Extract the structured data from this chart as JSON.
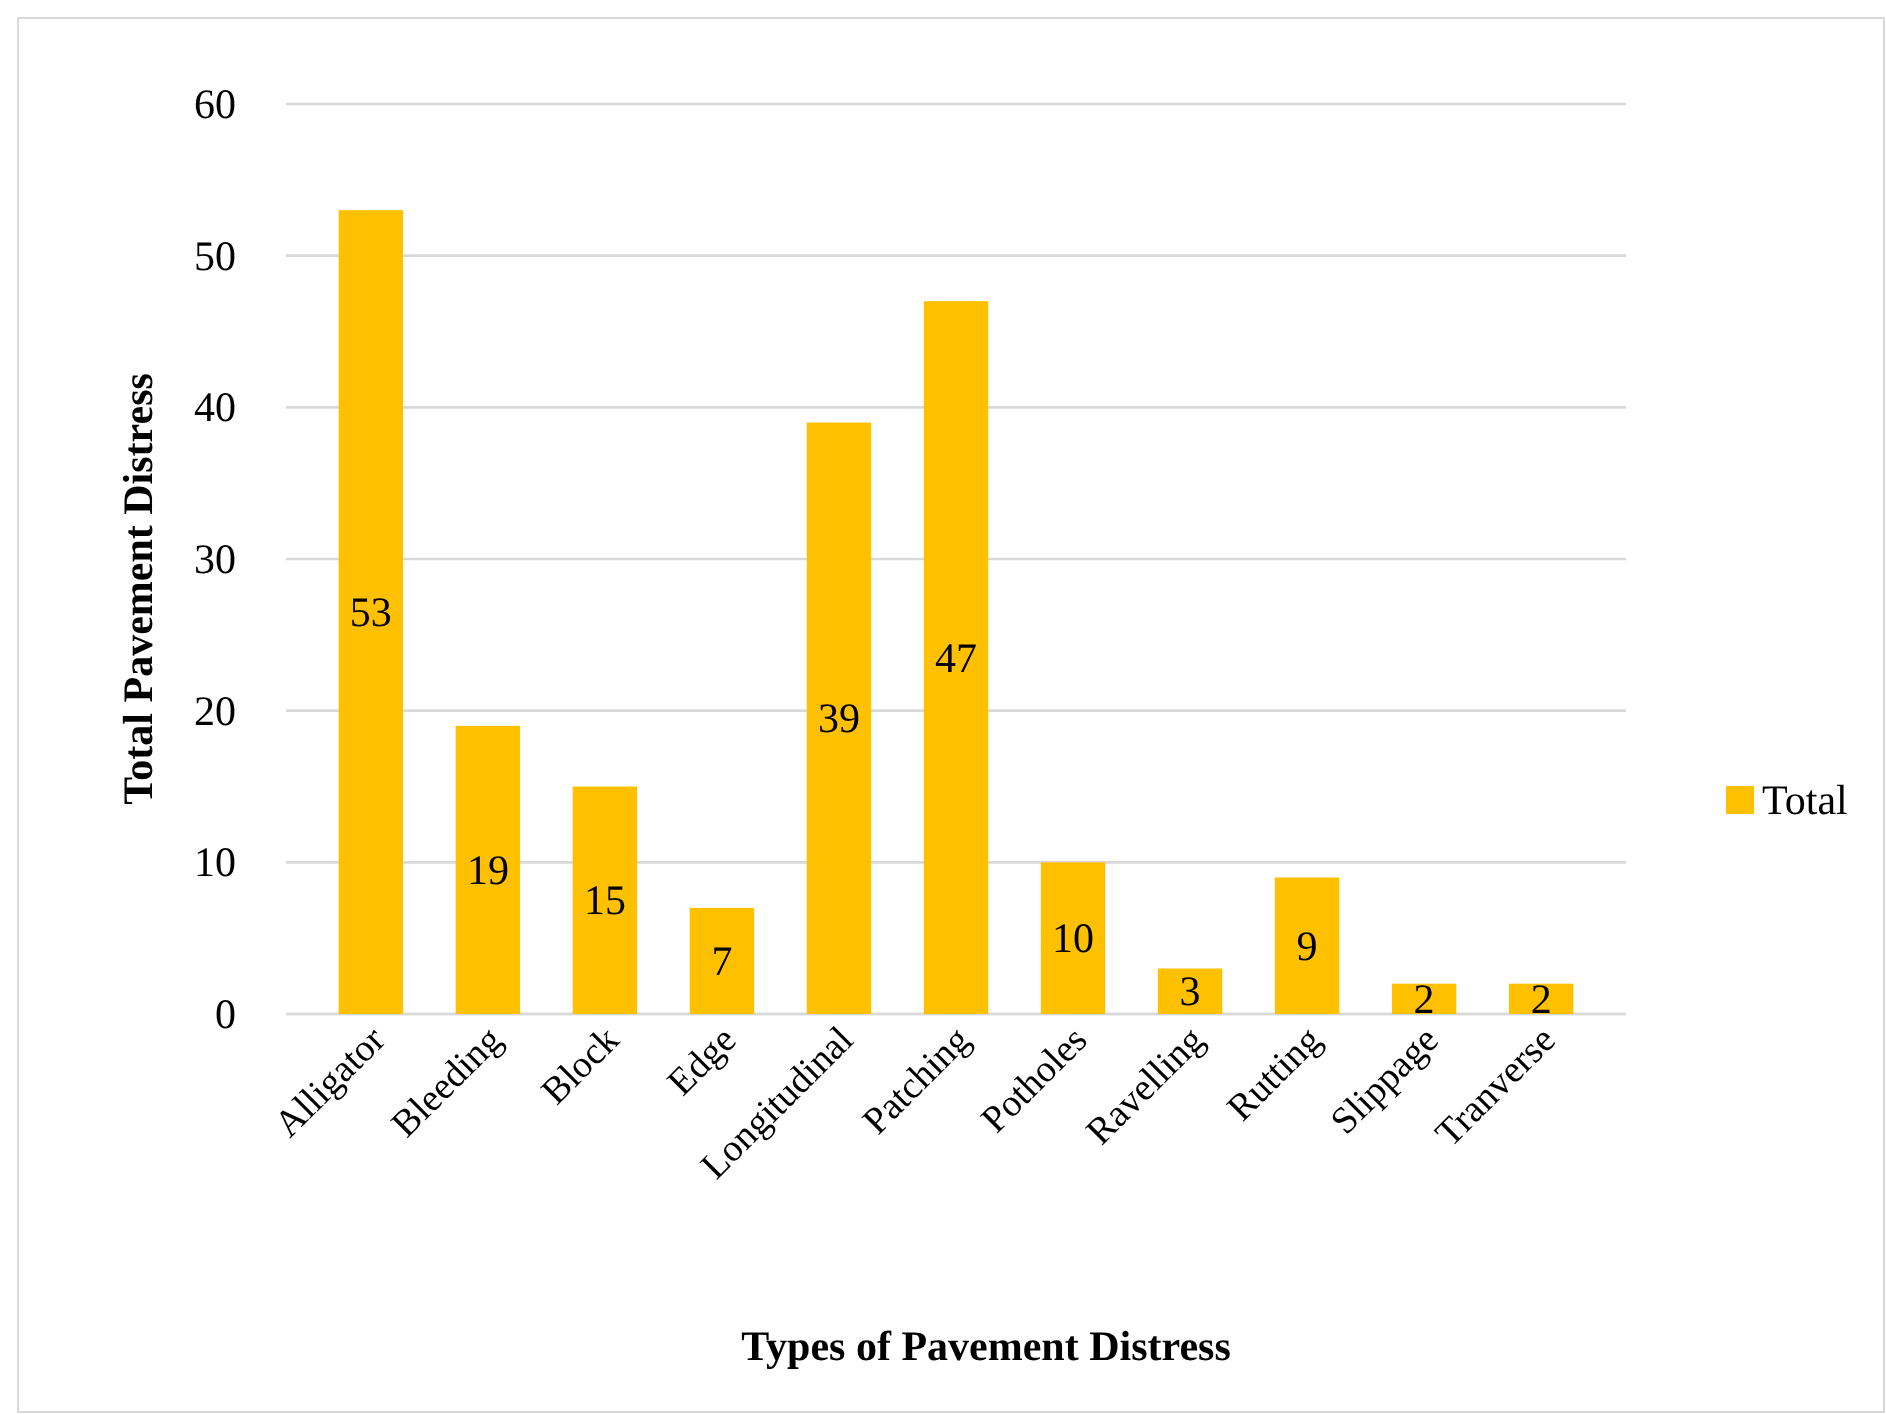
{
  "chart_data": {
    "type": "bar",
    "xlabel": "Types of Pavement Distress",
    "ylabel": "Total Pavement Distress",
    "categories": [
      "Alligator",
      "Bleeding",
      "Block",
      "Edge",
      "Longitudinal",
      "Patching",
      "Potholes",
      "Ravelling",
      "Rutting",
      "Slippage",
      "Tranverse"
    ],
    "series": [
      {
        "name": "Total",
        "color": "#ffc000",
        "values": [
          53,
          19,
          15,
          7,
          39,
          47,
          10,
          3,
          9,
          2,
          2
        ]
      }
    ],
    "ylim": [
      0,
      60
    ],
    "yticks": [
      0,
      10,
      20,
      30,
      40,
      50,
      60
    ],
    "grid": "y",
    "legend": "right",
    "data_labels": true
  }
}
